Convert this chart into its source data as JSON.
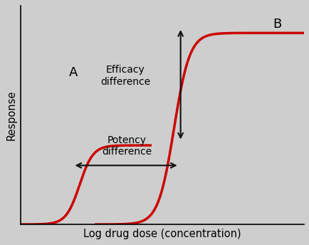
{
  "background_color": "#cecece",
  "plot_bg_color": "#cecece",
  "curve_color": "#cc0000",
  "curve_linewidth": 2.5,
  "xlabel": "Log drug dose (concentration)",
  "ylabel": "Response",
  "xlabel_fontsize": 10.5,
  "ylabel_fontsize": 10.5,
  "label_A": "A",
  "label_B": "B",
  "label_fontsize": 13,
  "efficacy_text": "Efficacy\ndifference",
  "potency_text": "Potency\ndifference",
  "text_fontsize": 10,
  "arrow_color": "#111111",
  "curve_A_ec50": 2.5,
  "curve_A_hill": 3.5,
  "curve_A_emax": 0.38,
  "curve_B_ec50": 6.5,
  "curve_B_hill": 3.0,
  "curve_B_emax": 0.92,
  "xlim": [
    0,
    12
  ],
  "ylim": [
    0,
    1.05
  ]
}
